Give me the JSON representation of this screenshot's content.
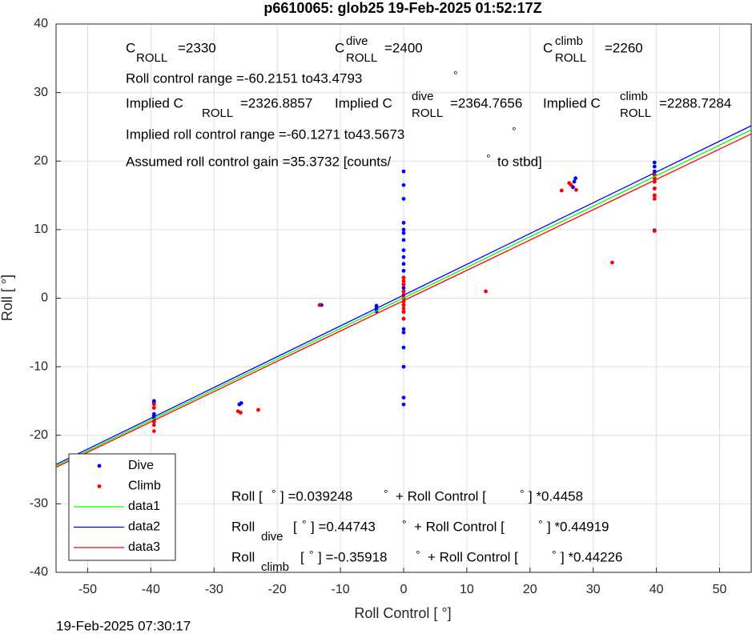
{
  "chart_data": {
    "type": "scatter",
    "title": "p6610065: glob25 19-Feb-2025 01:52:17Z",
    "xlabel": "Roll Control [ °]",
    "ylabel": "Roll [ °]",
    "xlim": [
      -55,
      55
    ],
    "ylim": [
      -40,
      40
    ],
    "xticks": [
      -50,
      -40,
      -30,
      -20,
      -10,
      0,
      10,
      20,
      30,
      40,
      50
    ],
    "yticks": [
      -40,
      -30,
      -20,
      -10,
      0,
      10,
      20,
      30,
      40
    ],
    "grid": true,
    "legend": "southwest",
    "series": [
      {
        "name": "Dive",
        "type": "scatter",
        "color": "#0000ff",
        "x": [
          -39.5,
          -39.5,
          -39.5,
          -39.5,
          -39.5,
          -39.5,
          -26,
          -25.7,
          -13,
          -4.3,
          -4.3,
          -4.3,
          0,
          0,
          0,
          0,
          0,
          0,
          0,
          0,
          0,
          0,
          0,
          0,
          0,
          0,
          0,
          0,
          0,
          0,
          0,
          0,
          0,
          0,
          0,
          0,
          0,
          0,
          0,
          26.8,
          27,
          27.2,
          39.7,
          39.7,
          39.7,
          39.7,
          39.7,
          39.7,
          39.7,
          39.7
        ],
        "values": [
          -15,
          -15.3,
          -16.9,
          -17.2,
          -17.5,
          -18,
          -15.5,
          -15.3,
          -1,
          -1.1,
          -1.5,
          -1.9,
          18.5,
          16.5,
          14.5,
          11,
          10,
          9.5,
          8.5,
          7,
          6,
          5,
          4,
          3,
          2,
          1.5,
          1,
          0.5,
          0,
          -0.5,
          -1,
          -2,
          -3,
          -4.5,
          -5,
          -7.2,
          -10,
          -14.5,
          -15.5,
          16.2,
          17,
          17.5,
          19.8,
          19.2,
          18.5,
          18,
          17,
          16,
          15,
          9.9
        ]
      },
      {
        "name": "Climb",
        "type": "scatter",
        "color": "#ff0000",
        "x": [
          -39.5,
          -39.5,
          -39.5,
          -39.5,
          -39.5,
          -26.2,
          -25.8,
          -23,
          -13.3,
          0,
          0,
          0,
          0,
          0,
          0,
          0,
          0,
          0,
          0,
          0,
          13,
          25,
          26.5,
          26.2,
          27.3,
          33,
          39.7,
          39.7,
          39.7,
          39.7,
          39.7,
          39.7,
          39.7
        ],
        "values": [
          -15.5,
          -16,
          -18,
          -18.5,
          -19.4,
          -16.5,
          -16.7,
          -16.3,
          -1,
          3,
          2.5,
          2,
          1,
          0.5,
          0,
          -0.5,
          -1,
          -1.5,
          -2,
          -3,
          1,
          15.7,
          16.5,
          16.8,
          15.8,
          5.2,
          18,
          17.5,
          17,
          16,
          15,
          14.5,
          9.8
        ]
      },
      {
        "name": "data1",
        "type": "line",
        "color": "#00ff00",
        "x": [
          -55,
          55
        ],
        "values": [
          -24.48,
          24.56
        ]
      },
      {
        "name": "data2",
        "type": "line",
        "color": "#0000ff",
        "x": [
          -55,
          55
        ],
        "values": [
          -24.258,
          25.153
        ]
      },
      {
        "name": "data3",
        "type": "line",
        "color": "#ff0000",
        "x": [
          -55,
          55
        ],
        "values": [
          -24.683,
          23.965
        ]
      }
    ],
    "annotations": [
      [
        "C",
        "ROLL",
        "=2330"
      ],
      [
        "C",
        "dive",
        "ROLL",
        "=2400"
      ],
      [
        "C",
        "climb",
        "ROLL",
        "=2260"
      ],
      [
        "Roll control range =-60.2151 to43.4793",
        "°"
      ],
      [
        "Implied C",
        "ROLL",
        "=2326.8857",
        "Implied C",
        "dive",
        "ROLL",
        "=2364.7656",
        "Implied C",
        "climb",
        "ROLL",
        "=2288.7284"
      ],
      [
        "Implied roll control range =-60.1271 to43.5673",
        "°"
      ],
      [
        "Assumed roll control gain =35.3732 [counts/",
        "°",
        "to stbd]"
      ],
      [
        "Roll [",
        "°",
        "] =0.039248",
        "°",
        "+ Roll Control [",
        "°",
        "] *0.4458"
      ],
      [
        "Roll",
        "dive",
        "[",
        "°",
        "] =0.44743",
        "°",
        "+ Roll Control [",
        "°",
        "] *0.44919"
      ],
      [
        "Roll",
        "climb",
        "[",
        "°",
        "] =-0.35918",
        "°",
        "+ Roll Control [",
        "°",
        "] *0.44226"
      ]
    ],
    "timestamp": "19-Feb-2025 07:30:17"
  }
}
